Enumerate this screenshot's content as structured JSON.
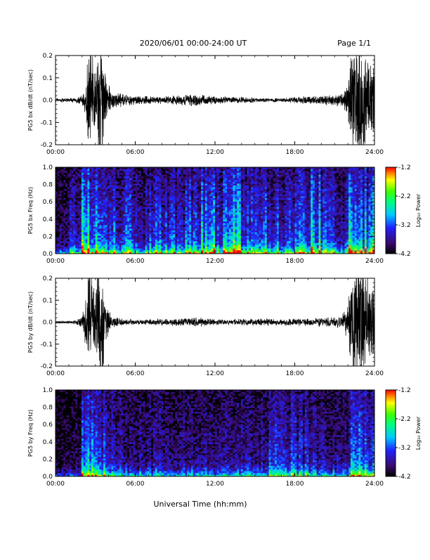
{
  "header": {
    "date_range": "2020/06/01  00:00-24:00 UT",
    "page": "Page 1/1"
  },
  "xaxis_common": {
    "ticks": [
      "00:00",
      "06:00",
      "12:00",
      "18:00",
      "24:00"
    ],
    "label": "Universal Time (hh:mm)"
  },
  "colorbar": {
    "label": "Log₁₀ Power",
    "ticks": [
      "-1.2",
      "-2.2",
      "-3.2",
      "-4.2"
    ],
    "range": [
      -4.2,
      -1.2
    ]
  },
  "chart_data": [
    {
      "type": "line",
      "ylabel": "PG5 bx dB/dt (nT/sec)",
      "xlim": [
        0,
        24
      ],
      "ylim": [
        -0.2,
        0.2
      ],
      "yticks": [
        "0.2",
        "0.1",
        "0.0",
        "-0.1",
        "-0.2"
      ],
      "xticks": [
        "00:00",
        "06:00",
        "12:00",
        "18:00",
        "24:00"
      ],
      "envelope": {
        "x_hours": [
          0,
          1.5,
          2.0,
          2.3,
          2.5,
          2.7,
          3.0,
          3.3,
          3.5,
          3.8,
          4.2,
          5.0,
          6.0,
          8.0,
          9.5,
          10.5,
          12.0,
          13.5,
          15.0,
          17.0,
          18.5,
          20.0,
          21.5,
          22.0,
          22.3,
          22.7,
          23.0,
          23.5,
          24.0
        ],
        "amplitude": [
          0.006,
          0.008,
          0.015,
          0.06,
          0.2,
          0.2,
          0.09,
          0.18,
          0.2,
          0.07,
          0.03,
          0.02,
          0.014,
          0.012,
          0.016,
          0.02,
          0.012,
          0.01,
          0.008,
          0.006,
          0.012,
          0.014,
          0.02,
          0.05,
          0.2,
          0.2,
          0.2,
          0.15,
          0.12
        ]
      }
    },
    {
      "type": "heatmap",
      "ylabel": "PG5 bx Freq (Hz)",
      "xlim": [
        0,
        24
      ],
      "ylim": [
        0.0,
        1.0
      ],
      "yticks": [
        "1.0",
        "0.8",
        "0.6",
        "0.4",
        "0.2",
        "0.0"
      ],
      "xticks": [
        "00:00",
        "06:00",
        "12:00",
        "18:00",
        "24:00"
      ],
      "zlim": [
        -4.2,
        -1.2
      ],
      "activity_by_hour": [
        0.15,
        0.3,
        0.75,
        0.6,
        0.55,
        0.45,
        0.35,
        0.6,
        0.45,
        0.45,
        0.55,
        0.65,
        0.55,
        0.7,
        0.65,
        0.55,
        0.45,
        0.5,
        0.6,
        0.7,
        0.45,
        0.35,
        0.75,
        0.7
      ]
    },
    {
      "type": "line",
      "ylabel": "PG5 by dB/dt (nT/sec)",
      "xlim": [
        0,
        24
      ],
      "ylim": [
        -0.2,
        0.2
      ],
      "yticks": [
        "0.2",
        "0.1",
        "0.0",
        "-0.1",
        "-0.2"
      ],
      "xticks": [
        "00:00",
        "06:00",
        "12:00",
        "18:00",
        "24:00"
      ],
      "envelope": {
        "x_hours": [
          0,
          1.5,
          2.0,
          2.3,
          2.5,
          2.7,
          3.0,
          3.3,
          3.5,
          3.8,
          4.2,
          5.0,
          6.0,
          8.0,
          9.5,
          10.5,
          12.0,
          13.5,
          15.0,
          17.0,
          18.5,
          20.0,
          21.5,
          22.0,
          22.3,
          22.7,
          23.0,
          23.5,
          24.0
        ],
        "amplitude": [
          0.004,
          0.006,
          0.02,
          0.08,
          0.2,
          0.2,
          0.1,
          0.2,
          0.18,
          0.06,
          0.02,
          0.012,
          0.008,
          0.01,
          0.012,
          0.015,
          0.01,
          0.01,
          0.012,
          0.01,
          0.012,
          0.014,
          0.02,
          0.06,
          0.2,
          0.2,
          0.2,
          0.14,
          0.12
        ]
      }
    },
    {
      "type": "heatmap",
      "ylabel": "PG5 by Freq (Hz)",
      "xlim": [
        0,
        24
      ],
      "ylim": [
        0.0,
        1.0
      ],
      "yticks": [
        "1.0",
        "0.8",
        "0.6",
        "0.4",
        "0.2",
        "0.0"
      ],
      "xticks": [
        "00:00",
        "06:00",
        "12:00",
        "18:00",
        "24:00"
      ],
      "zlim": [
        -4.2,
        -1.2
      ],
      "activity_by_hour": [
        0.05,
        0.1,
        0.55,
        0.45,
        0.35,
        0.25,
        0.2,
        0.25,
        0.2,
        0.2,
        0.2,
        0.25,
        0.22,
        0.25,
        0.25,
        0.3,
        0.4,
        0.4,
        0.35,
        0.3,
        0.25,
        0.2,
        0.55,
        0.5
      ]
    }
  ]
}
